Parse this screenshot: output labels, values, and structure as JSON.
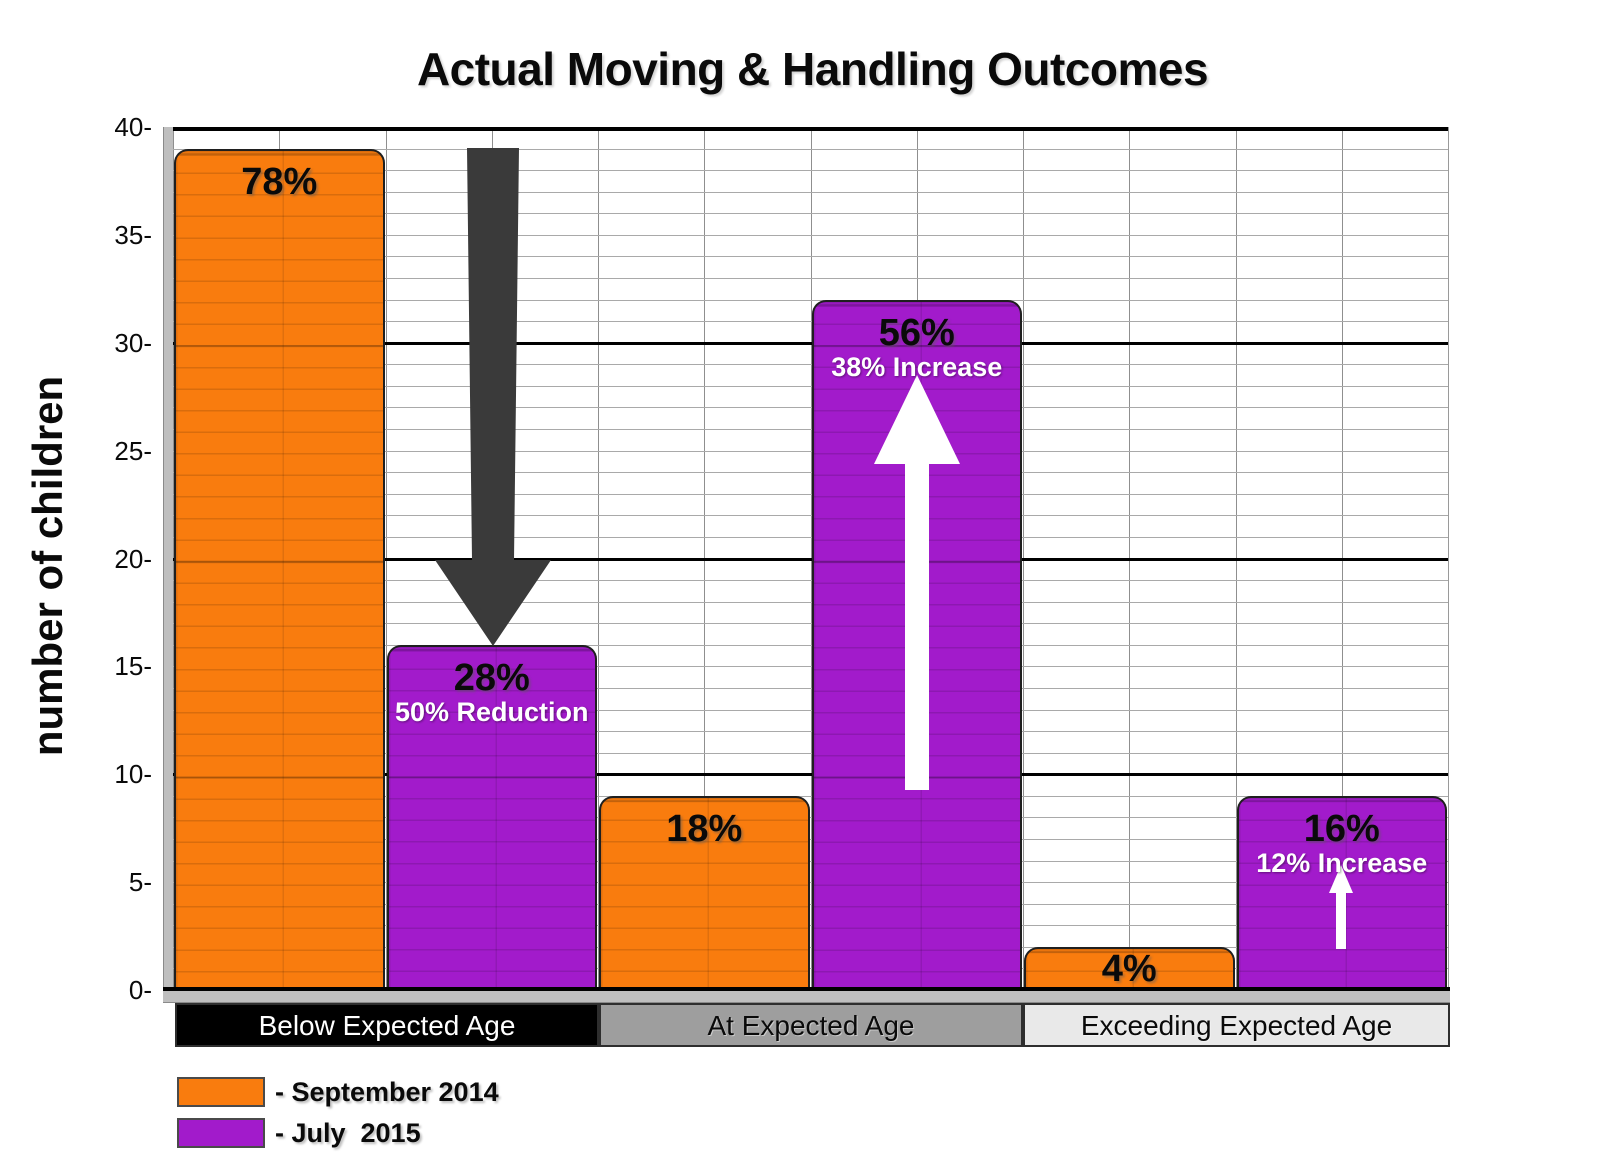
{
  "title": "Actual Moving & Handling Outcomes",
  "y_axis": {
    "label": "number of children",
    "tick_suffix": "-",
    "tick_values": [
      40,
      35,
      30,
      25,
      20,
      15,
      10,
      5,
      0
    ]
  },
  "category_bar": {
    "items": [
      {
        "label": "Below Expected Age",
        "bg": "#000000",
        "text_color": "#ffffff"
      },
      {
        "label": "At Expected Age",
        "bg": "#9e9e9e",
        "text_color": "#0a0a0a"
      },
      {
        "label": "Exceeding Expected Age",
        "bg": "#e9e9e9",
        "text_color": "#0a0a0a"
      }
    ]
  },
  "legend": {
    "items": [
      {
        "label": "- September 2014",
        "color": "#F97C0E"
      },
      {
        "label": "- July  2015",
        "color": "#A21BCB"
      }
    ]
  },
  "chart_data": {
    "type": "bar",
    "title": "Actual Moving & Handling Outcomes",
    "xlabel": "",
    "ylabel": "number of children",
    "ylim": [
      0,
      40
    ],
    "grid": {
      "minor_step": 1,
      "major_step": 10,
      "shown": true
    },
    "legend_position": "bottom-left",
    "categories": [
      "Below Expected Age",
      "At Expected Age",
      "Exceeding Expected Age"
    ],
    "series": [
      {
        "name": "September 2014",
        "color": "#F97C0E",
        "values": [
          39,
          9,
          2
        ],
        "bar_labels": [
          "78%",
          "18%",
          "4%"
        ]
      },
      {
        "name": "July 2015",
        "color": "#A21BCB",
        "values": [
          16,
          32,
          9
        ],
        "bar_labels": [
          "28%",
          "56%",
          "16%"
        ],
        "bar_sublabels": [
          "50% Reduction",
          "38% Increase",
          "12% Increase"
        ]
      }
    ],
    "annotations": [
      {
        "shape": "down-arrow",
        "color": "#3a3a3a",
        "group": "Below Expected Age",
        "meaning": "50% Reduction"
      },
      {
        "shape": "up-arrow",
        "color": "#ffffff",
        "group": "At Expected Age",
        "meaning": "38% Increase"
      },
      {
        "shape": "up-arrow-small",
        "color": "#ffffff",
        "group": "Exceeding Expected Age",
        "meaning": "12% Increase"
      }
    ]
  }
}
